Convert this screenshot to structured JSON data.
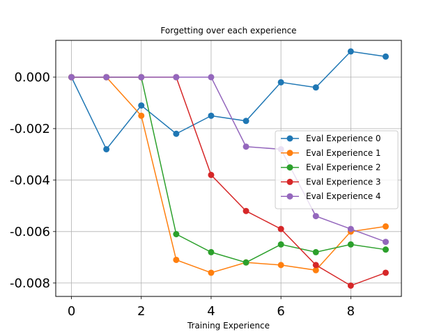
{
  "chart_data": {
    "type": "line",
    "title": "Forgetting over each experience",
    "xlabel": "Training Experience",
    "ylabel": "",
    "x": [
      0,
      1,
      2,
      3,
      4,
      5,
      6,
      7,
      8,
      9
    ],
    "xticks": [
      0,
      2,
      4,
      6,
      8
    ],
    "xtick_labels": [
      "0",
      "2",
      "4",
      "6",
      "8"
    ],
    "yticks": [
      0.0,
      -0.002,
      -0.004,
      -0.006,
      -0.008
    ],
    "ytick_labels": [
      "0.000",
      "-0.002",
      "-0.004",
      "-0.006",
      "-0.008"
    ],
    "xlim": [
      -0.45,
      9.45
    ],
    "ylim": [
      -0.00852,
      0.00143
    ],
    "grid": true,
    "legend_position": "center-right",
    "series": [
      {
        "name": "Eval Experience 0",
        "color": "#1f77b4",
        "values": [
          0.0,
          -0.0028,
          -0.0011,
          -0.0022,
          -0.0015,
          -0.0017,
          -0.0002,
          -0.0004,
          0.001,
          0.0008
        ]
      },
      {
        "name": "Eval Experience 1",
        "color": "#ff7f0e",
        "values": [
          0.0,
          0.0,
          -0.0015,
          -0.0071,
          -0.0076,
          -0.0072,
          -0.0073,
          -0.0075,
          -0.006,
          -0.0058
        ]
      },
      {
        "name": "Eval Experience 2",
        "color": "#2ca02c",
        "values": [
          0.0,
          0.0,
          0.0,
          -0.0061,
          -0.0068,
          -0.0072,
          -0.0065,
          -0.0068,
          -0.0065,
          -0.0067
        ]
      },
      {
        "name": "Eval Experience 3",
        "color": "#d62728",
        "values": [
          0.0,
          0.0,
          0.0,
          0.0,
          -0.0038,
          -0.0052,
          -0.0059,
          -0.0073,
          -0.0081,
          -0.0076
        ]
      },
      {
        "name": "Eval Experience 4",
        "color": "#9467bd",
        "values": [
          0.0,
          0.0,
          0.0,
          0.0,
          0.0,
          -0.0027,
          -0.0028,
          -0.0054,
          -0.0059,
          -0.0064
        ]
      }
    ]
  }
}
